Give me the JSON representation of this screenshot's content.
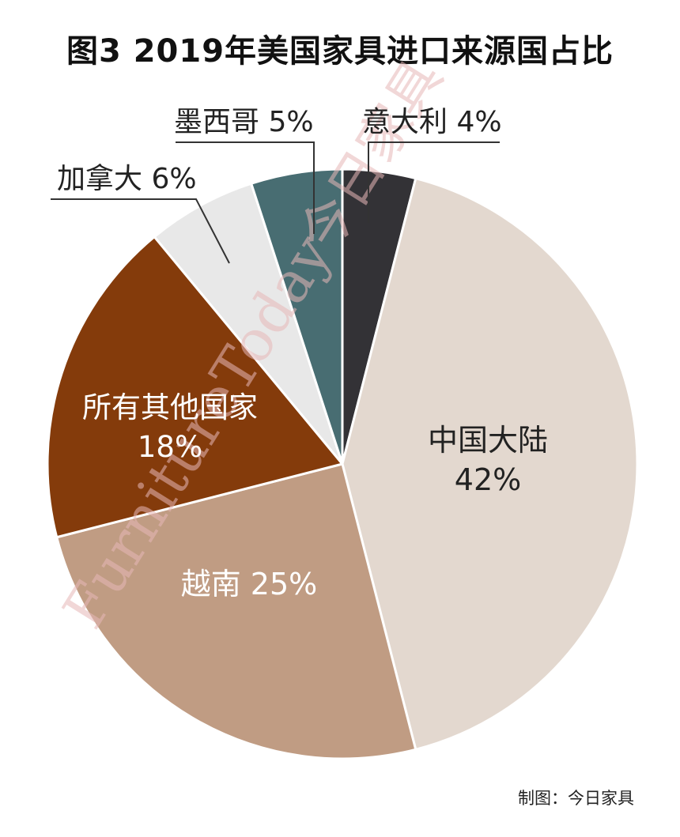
{
  "chart_data": {
    "type": "pie",
    "title": "图3  2019年美国家具进口来源国占比",
    "start_angle_deg": 0,
    "direction": "clockwise",
    "slices": [
      {
        "name": "意大利",
        "value": 4,
        "label": "4%",
        "color": "#333236",
        "label_color": "#222222",
        "label_style": "leader"
      },
      {
        "name": "中国大陆",
        "value": 42,
        "label": "42%",
        "color": "#e3d8cf",
        "label_color": "#222222",
        "label_style": "inside-2line"
      },
      {
        "name": "越南",
        "value": 25,
        "label": "25%",
        "color": "#c09c83",
        "label_color": "#ffffff",
        "label_style": "inside-1line"
      },
      {
        "name": "所有其他国家",
        "value": 18,
        "label": "18%",
        "color": "#843b0b",
        "label_color": "#ffffff",
        "label_style": "inside-2line"
      },
      {
        "name": "加拿大",
        "value": 6,
        "label": "6%",
        "color": "#e8e8e8",
        "label_color": "#222222",
        "label_style": "leader"
      },
      {
        "name": "墨西哥",
        "value": 5,
        "label": "5%",
        "color": "#486d72",
        "label_color": "#222222",
        "label_style": "leader"
      }
    ]
  },
  "watermark": {
    "latin": "FurnitureToday",
    "cjk": "今日家具"
  },
  "credit": "制图：今日家具"
}
